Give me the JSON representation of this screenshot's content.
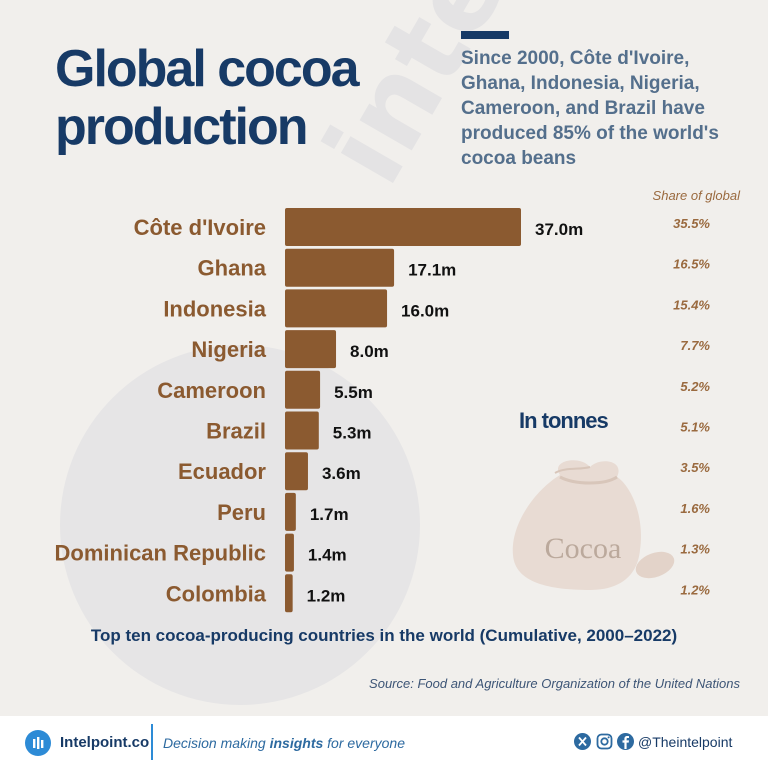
{
  "title": "Global cocoa production",
  "subtitle": "Since 2000, Côte d'Ivoire, Ghana, Indonesia, Nigeria, Cameroon, and Brazil have produced 85% of the world's cocoa beans",
  "share_header": "Share of global",
  "unit_note": "In tonnes",
  "sack_label": "Cocoa",
  "watermark": "intelpoint",
  "caption": "Top ten cocoa-producing countries in the world (Cumulative, 2000–2022)",
  "source": "Source: Food and Agriculture Organization of the United Nations",
  "colors": {
    "bar": "#8b5a30",
    "title": "#173a66",
    "background": "#f1efec"
  },
  "footer": {
    "brand": "Intelpoint.co",
    "tagline_before": "Decision making ",
    "tagline_bold": "insights",
    "tagline_after": " for everyone",
    "handle": "@Theintelpoint",
    "icons": [
      "x-icon",
      "instagram-icon",
      "facebook-icon"
    ]
  },
  "chart_data": {
    "type": "bar",
    "orientation": "horizontal",
    "categories": [
      "Côte d'Ivoire",
      "Ghana",
      "Indonesia",
      "Nigeria",
      "Cameroon",
      "Brazil",
      "Ecuador",
      "Peru",
      "Dominican Republic",
      "Colombia"
    ],
    "values": [
      37.0,
      17.1,
      16.0,
      8.0,
      5.5,
      5.3,
      3.6,
      1.7,
      1.4,
      1.2
    ],
    "value_labels": [
      "37.0m",
      "17.1m",
      "16.0m",
      "8.0m",
      "5.5m",
      "5.3m",
      "3.6m",
      "1.7m",
      "1.4m",
      "1.2m"
    ],
    "share_labels": [
      "35.5%",
      "16.5%",
      "15.4%",
      "7.7%",
      "5.2%",
      "5.1%",
      "3.5%",
      "1.6%",
      "1.3%",
      "1.2%"
    ],
    "share_values": [
      35.5,
      16.5,
      15.4,
      7.7,
      5.2,
      5.1,
      3.5,
      1.6,
      1.3,
      1.2
    ],
    "unit": "In tonnes",
    "grid": false,
    "legend": "none"
  }
}
